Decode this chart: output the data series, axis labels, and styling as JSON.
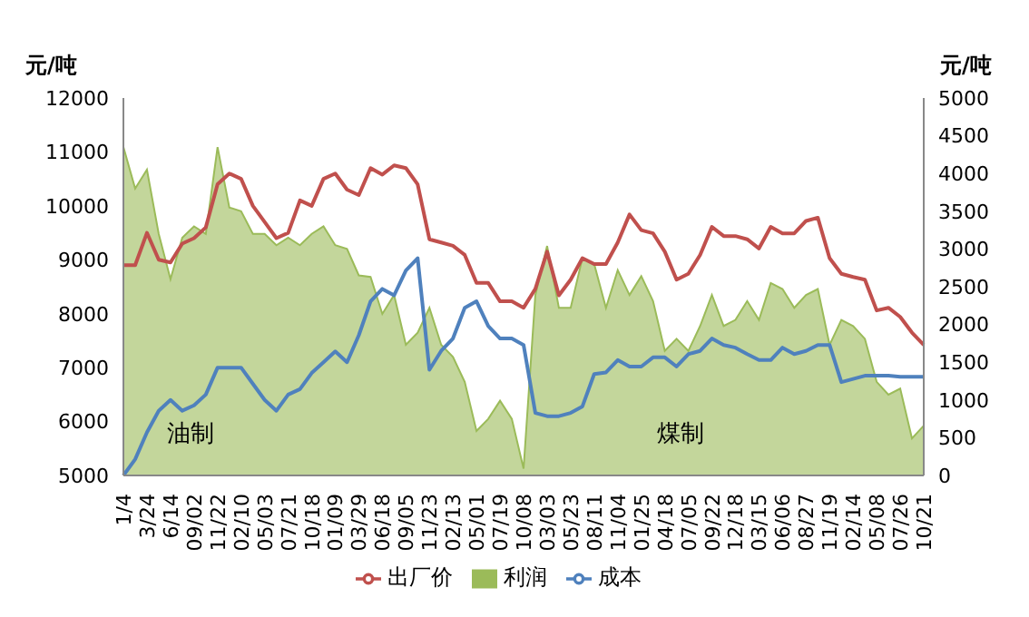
{
  "chart_data": {
    "type": "line",
    "ylabel": "元/吨",
    "y2label": "元/吨",
    "categories": [
      "1/4",
      null,
      "3/24",
      null,
      "6/14",
      null,
      "09/02",
      null,
      "11/22",
      null,
      "02/10",
      null,
      "05/03",
      null,
      "07/21",
      null,
      "10/18",
      null,
      "01/09",
      null,
      "03/29",
      null,
      "06/18",
      null,
      "09/05",
      null,
      "11/23",
      null,
      "02/13",
      null,
      "05/01",
      null,
      "07/19",
      null,
      "10/08",
      null,
      "03/03",
      null,
      "05/23",
      null,
      "08/11",
      null,
      "11/04",
      null,
      "01/25",
      null,
      "04/18",
      null,
      "07/05",
      null,
      "09/22",
      null,
      "12/18",
      null,
      "03/15",
      null,
      "06/06",
      null,
      "08/27",
      null,
      "11/19",
      null,
      "02/14",
      null,
      "05/08",
      null,
      "07/26",
      null,
      "10/21"
    ],
    "series": [
      {
        "name": "利润",
        "type": "area",
        "axis": "y2",
        "color": "#9bbb59",
        "values": [
          4350,
          3800,
          4050,
          3200,
          2600,
          3150,
          3300,
          3200,
          4350,
          3550,
          3500,
          3200,
          3200,
          3050,
          3150,
          3050,
          3200,
          3300,
          3050,
          3000,
          2650,
          2630,
          2140,
          2390,
          1730,
          1890,
          2220,
          1730,
          1570,
          1240,
          590,
          750,
          990,
          750,
          90,
          2390,
          3040,
          2220,
          2220,
          2880,
          2800,
          2220,
          2720,
          2390,
          2640,
          2310,
          1650,
          1810,
          1650,
          1980,
          2390,
          1980,
          2060,
          2310,
          2060,
          2550,
          2470,
          2220,
          2390,
          2470,
          1730,
          2060,
          1980,
          1810,
          1240,
          1070,
          1150,
          490,
          660
        ]
      },
      {
        "name": "成本",
        "color": "#4f81bd",
        "values": [
          5000,
          5300,
          5800,
          6200,
          6400,
          6200,
          6300,
          6500,
          7000,
          7000,
          7000,
          6700,
          6400,
          6200,
          6500,
          6600,
          6900,
          7100,
          7300,
          7100,
          7600,
          8230,
          8460,
          8340,
          8800,
          9030,
          6960,
          7310,
          7540,
          8110,
          8230,
          7770,
          7540,
          7540,
          7420,
          6160,
          6100,
          6100,
          6160,
          6280,
          6880,
          6910,
          7140,
          7020,
          7020,
          7190,
          7190,
          7020,
          7250,
          7310,
          7540,
          7420,
          7370,
          7250,
          7140,
          7140,
          7370,
          7250,
          7310,
          7420,
          7420,
          6730,
          6790,
          6850,
          6850,
          6850,
          6830,
          6830,
          6830
        ]
      },
      {
        "name": "出厂价",
        "color": "#c0504d",
        "values": [
          8900,
          8900,
          9500,
          9000,
          8950,
          9300,
          9400,
          9600,
          10400,
          10600,
          10500,
          10000,
          9700,
          9400,
          9500,
          10100,
          10000,
          10500,
          10600,
          10300,
          10200,
          10700,
          10580,
          10750,
          10700,
          10400,
          9380,
          9320,
          9260,
          9090,
          8570,
          8570,
          8230,
          8230,
          8110,
          8460,
          9150,
          8340,
          8630,
          9030,
          8920,
          8920,
          9320,
          9840,
          9550,
          9490,
          9150,
          8630,
          8740,
          9090,
          9610,
          9440,
          9440,
          9380,
          9210,
          9610,
          9490,
          9490,
          9720,
          9780,
          9030,
          8740,
          8680,
          8630,
          8060,
          8110,
          7940,
          7650,
          7420
        ]
      }
    ],
    "ylim": [
      5000,
      12000
    ],
    "yticks": [
      5000,
      6000,
      7000,
      8000,
      9000,
      10000,
      11000,
      12000
    ],
    "y2lim": [
      0,
      5000
    ],
    "y2ticks": [
      0,
      500,
      1000,
      1500,
      2000,
      2500,
      3000,
      3500,
      4000,
      4500,
      5000
    ],
    "annotations": [
      "油制",
      "煤制"
    ],
    "legend": "bottom",
    "marker": "none",
    "line_style": "solid"
  }
}
